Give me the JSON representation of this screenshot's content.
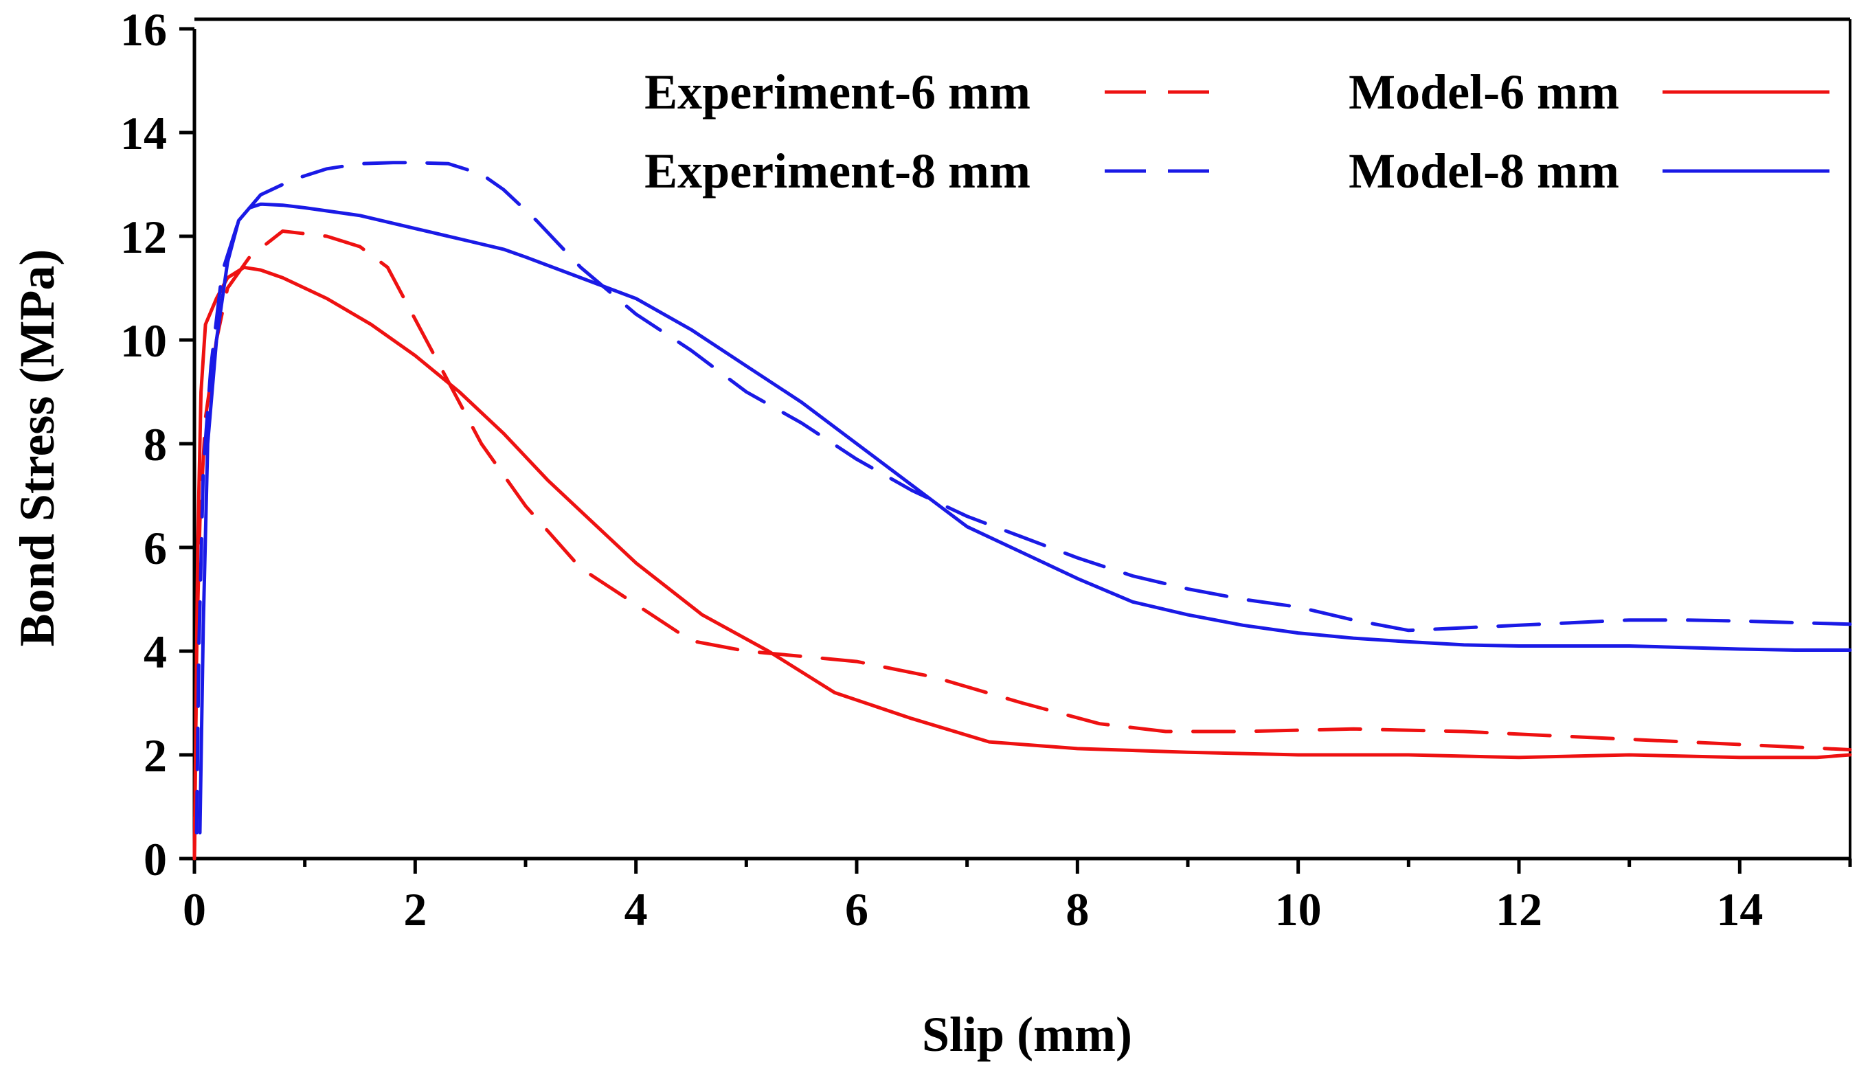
{
  "chart_data": {
    "type": "line",
    "title": "",
    "xlabel": "Slip (mm)",
    "ylabel": "Bond Stress (MPa)",
    "xlim": [
      0,
      15
    ],
    "ylim": [
      0,
      16
    ],
    "xticks": [
      0,
      2,
      4,
      6,
      8,
      10,
      12,
      14
    ],
    "yticks": [
      0,
      2,
      4,
      6,
      8,
      10,
      12,
      14,
      16
    ],
    "legend_position": "top-right",
    "series": [
      {
        "name": "Experiment-6 mm",
        "color": "#ee1111",
        "style": "dashed",
        "x": [
          0,
          0.02,
          0.05,
          0.1,
          0.2,
          0.3,
          0.5,
          0.8,
          1.2,
          1.5,
          1.75,
          2.0,
          2.3,
          2.6,
          3.0,
          3.5,
          4.0,
          4.5,
          5.0,
          6.0,
          6.7,
          7.5,
          8.2,
          8.8,
          9.5,
          10.5,
          11.5,
          12.5,
          13.5,
          14.5,
          15.0
        ],
        "y": [
          0,
          4.0,
          6.5,
          8.5,
          10.0,
          11.0,
          11.6,
          12.1,
          12.0,
          11.8,
          11.4,
          10.4,
          9.2,
          8.0,
          6.8,
          5.6,
          4.9,
          4.2,
          4.0,
          3.8,
          3.5,
          3.0,
          2.6,
          2.45,
          2.45,
          2.5,
          2.45,
          2.35,
          2.25,
          2.15,
          2.1
        ]
      },
      {
        "name": "Model-6 mm",
        "color": "#ee1111",
        "style": "solid",
        "x": [
          0,
          0.03,
          0.06,
          0.1,
          0.2,
          0.3,
          0.45,
          0.6,
          0.8,
          1.2,
          1.6,
          2.0,
          2.4,
          2.8,
          3.2,
          3.6,
          4.0,
          4.6,
          5.2,
          5.8,
          6.5,
          7.2,
          8.0,
          9.0,
          10.0,
          11.0,
          12.0,
          13.0,
          14.0,
          14.7,
          15.0
        ],
        "y": [
          0,
          6.0,
          9.0,
          10.3,
          10.8,
          11.2,
          11.4,
          11.35,
          11.2,
          10.8,
          10.3,
          9.7,
          9.0,
          8.2,
          7.3,
          6.5,
          5.7,
          4.7,
          4.0,
          3.2,
          2.7,
          2.25,
          2.12,
          2.05,
          2.0,
          2.0,
          1.95,
          2.0,
          1.95,
          1.95,
          2.0
        ]
      },
      {
        "name": "Experiment-8 mm",
        "color": "#1a1ae6",
        "style": "dashed",
        "x": [
          0.02,
          0.04,
          0.08,
          0.15,
          0.25,
          0.4,
          0.6,
          0.9,
          1.2,
          1.5,
          1.8,
          2.0,
          2.3,
          2.6,
          2.8,
          3.1,
          3.5,
          4.0,
          4.5,
          5.0,
          5.5,
          6.0,
          6.5,
          7.0,
          7.5,
          8.0,
          8.5,
          9.0,
          9.5,
          10.0,
          10.5,
          11.0,
          11.5,
          12.0,
          12.5,
          13.0,
          13.5,
          14.0,
          14.5,
          15.0
        ],
        "y": [
          0.5,
          4.0,
          7.5,
          9.5,
          11.3,
          12.3,
          12.8,
          13.1,
          13.3,
          13.4,
          13.42,
          13.42,
          13.4,
          13.2,
          12.9,
          12.3,
          11.4,
          10.5,
          9.8,
          9.0,
          8.4,
          7.7,
          7.1,
          6.6,
          6.2,
          5.8,
          5.45,
          5.2,
          5.0,
          4.85,
          4.6,
          4.4,
          4.45,
          4.5,
          4.55,
          4.6,
          4.6,
          4.58,
          4.55,
          4.52
        ]
      },
      {
        "name": "Model-8 mm",
        "color": "#1a1ae6",
        "style": "solid",
        "x": [
          0.05,
          0.08,
          0.12,
          0.2,
          0.3,
          0.4,
          0.5,
          0.6,
          0.8,
          1.0,
          1.5,
          2.0,
          2.5,
          2.8,
          3.0,
          3.5,
          4.0,
          4.5,
          5.0,
          5.5,
          6.0,
          6.5,
          7.0,
          7.5,
          8.0,
          8.5,
          9.0,
          9.5,
          10.0,
          10.5,
          11.0,
          11.5,
          12.0,
          12.5,
          13.0,
          13.5,
          14.0,
          14.5,
          15.0
        ],
        "y": [
          0.5,
          4.5,
          8.0,
          10.0,
          11.5,
          12.3,
          12.55,
          12.62,
          12.6,
          12.55,
          12.4,
          12.15,
          11.9,
          11.75,
          11.6,
          11.2,
          10.8,
          10.2,
          9.5,
          8.8,
          8.0,
          7.2,
          6.4,
          5.9,
          5.4,
          4.95,
          4.7,
          4.5,
          4.35,
          4.25,
          4.18,
          4.12,
          4.1,
          4.1,
          4.1,
          4.07,
          4.04,
          4.02,
          4.02
        ]
      }
    ]
  }
}
